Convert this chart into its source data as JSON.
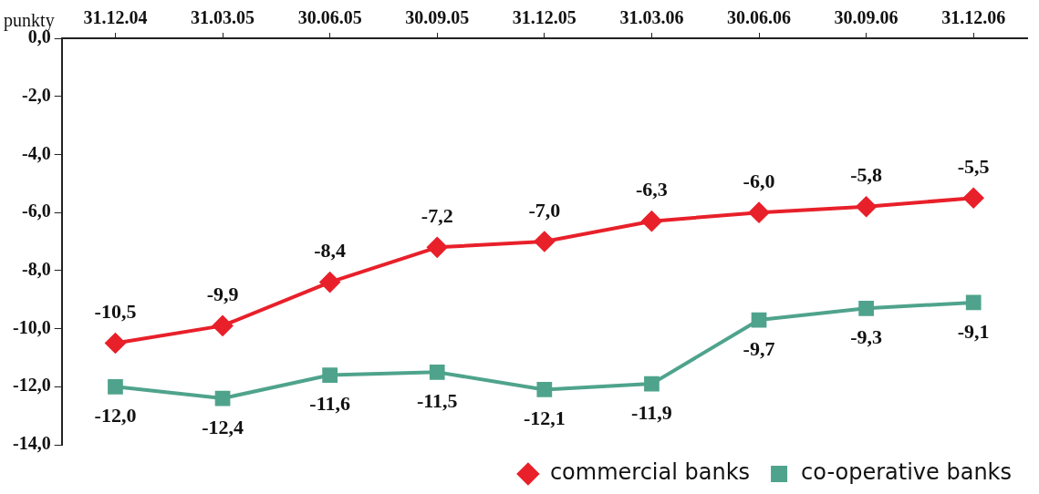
{
  "chart_data": {
    "type": "line",
    "ylabel": "punkty",
    "categories": [
      "31.12.04",
      "31.03.05",
      "30.06.05",
      "30.09.05",
      "31.12.05",
      "31.03.06",
      "30.06.06",
      "30.09.06",
      "31.12.06"
    ],
    "series": [
      {
        "name": "commercial banks",
        "color": "#e8202a",
        "marker": "diamond",
        "values": [
          -10.5,
          -9.9,
          -8.4,
          -7.2,
          -7.0,
          -6.3,
          -6.0,
          -5.8,
          -5.5
        ],
        "value_labels": [
          "-10,5",
          "-9,9",
          "-8,4",
          "-7,2",
          "-7,0",
          "-6,3",
          "-6,0",
          "-5,8",
          "-5,5"
        ]
      },
      {
        "name": "co-operative banks",
        "color": "#4fa38c",
        "marker": "square",
        "values": [
          -12.0,
          -12.4,
          -11.6,
          -11.5,
          -12.1,
          -11.9,
          -9.7,
          -9.3,
          -9.1
        ],
        "value_labels": [
          "-12,0",
          "-12,4",
          "-11,6",
          "-11,5",
          "-12,1",
          "-11,9",
          "-9,7",
          "-9,3",
          "-9,1"
        ]
      }
    ],
    "ylim": [
      -14,
      0
    ],
    "yticks": [
      {
        "value": 0,
        "label": "0,0"
      },
      {
        "value": -2,
        "label": "-2,0"
      },
      {
        "value": -4,
        "label": "-4,0"
      },
      {
        "value": -6,
        "label": "-6,0"
      },
      {
        "value": -8,
        "label": "-8,0"
      },
      {
        "value": -10,
        "label": "-10,0"
      },
      {
        "value": -12,
        "label": "-12,0"
      },
      {
        "value": -14,
        "label": "-14,0"
      }
    ],
    "grid": false,
    "legend": "bottom",
    "line_style": "solid"
  }
}
